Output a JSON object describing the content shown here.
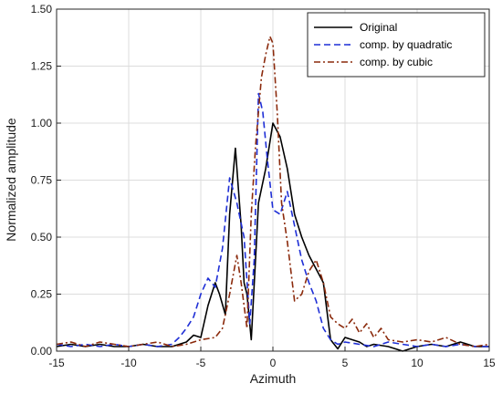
{
  "chart_data": {
    "type": "line",
    "xlabel": "Azimuth",
    "ylabel": "Normalized amplitude",
    "xlim": [
      -15,
      15
    ],
    "ylim": [
      0,
      1.5
    ],
    "xticks": [
      -15,
      -10,
      -5,
      0,
      5,
      10,
      15
    ],
    "yticks": [
      0,
      0.25,
      0.5,
      0.75,
      1.0,
      1.25,
      1.5
    ],
    "xtick_labels": [
      "-15",
      "-10",
      "-5",
      "0",
      "5",
      "10",
      "15"
    ],
    "ytick_labels": [
      "0.00",
      "0.25",
      "0.50",
      "0.75",
      "1.00",
      "1.25",
      "1.50"
    ],
    "grid": true,
    "legend_position": "top-right",
    "series": [
      {
        "name": "Original",
        "color": "#000000",
        "dash": "solid",
        "x": [
          -15,
          -14,
          -13,
          -12,
          -11,
          -10,
          -9,
          -8,
          -7,
          -6.5,
          -6,
          -5.5,
          -5,
          -4.5,
          -4,
          -3.7,
          -3.3,
          -3,
          -2.6,
          -2.2,
          -2,
          -1.8,
          -1.5,
          -1,
          -0.5,
          0,
          0.5,
          1,
          1.5,
          2,
          2.5,
          3,
          3.5,
          4,
          4.5,
          5,
          5.5,
          6,
          6.5,
          7,
          8,
          9,
          10,
          11,
          12,
          13,
          14,
          15
        ],
        "y": [
          0.02,
          0.03,
          0.02,
          0.03,
          0.02,
          0.02,
          0.03,
          0.02,
          0.02,
          0.03,
          0.04,
          0.07,
          0.06,
          0.2,
          0.3,
          0.25,
          0.16,
          0.6,
          0.89,
          0.55,
          0.3,
          0.25,
          0.05,
          0.65,
          0.8,
          1.0,
          0.94,
          0.8,
          0.6,
          0.5,
          0.42,
          0.36,
          0.3,
          0.05,
          0.01,
          0.06,
          0.05,
          0.04,
          0.02,
          0.03,
          0.02,
          0.0,
          0.02,
          0.03,
          0.02,
          0.04,
          0.02,
          0.02
        ]
      },
      {
        "name": "comp. by quadratic",
        "color": "#1f2fd6",
        "dash": "dashed",
        "x": [
          -15,
          -14,
          -13,
          -12,
          -11,
          -10,
          -9,
          -8,
          -7,
          -6.5,
          -6,
          -5.5,
          -5,
          -4.5,
          -4,
          -3.5,
          -3,
          -2.5,
          -2,
          -1.6,
          -1.3,
          -1,
          -0.7,
          -0.4,
          0,
          0.5,
          1,
          1.5,
          2,
          2.5,
          3,
          3.5,
          4,
          4.5,
          5,
          6,
          7,
          8,
          9,
          10,
          11,
          12,
          13,
          14,
          15
        ],
        "y": [
          0.03,
          0.02,
          0.03,
          0.02,
          0.03,
          0.02,
          0.03,
          0.02,
          0.03,
          0.06,
          0.1,
          0.15,
          0.25,
          0.32,
          0.28,
          0.45,
          0.76,
          0.65,
          0.5,
          0.12,
          0.4,
          1.13,
          1.05,
          0.85,
          0.62,
          0.6,
          0.7,
          0.55,
          0.4,
          0.3,
          0.22,
          0.1,
          0.05,
          0.03,
          0.04,
          0.03,
          0.02,
          0.04,
          0.03,
          0.02,
          0.03,
          0.02,
          0.03,
          0.02,
          0.02
        ]
      },
      {
        "name": "comp. by cubic",
        "color": "#8b2a0c",
        "dash": "dashdot",
        "x": [
          -15,
          -14,
          -13,
          -12,
          -11,
          -10,
          -9,
          -8,
          -7,
          -6,
          -5,
          -4,
          -3.5,
          -3,
          -2.5,
          -2.2,
          -1.8,
          -1.5,
          -1.2,
          -0.8,
          -0.5,
          -0.2,
          0,
          0.3,
          0.6,
          1,
          1.5,
          2,
          2.5,
          3,
          3.5,
          4,
          4.5,
          5,
          5.5,
          6,
          6.5,
          7,
          7.5,
          8,
          9,
          10,
          11,
          12,
          13,
          14,
          15
        ],
        "y": [
          0.03,
          0.04,
          0.02,
          0.04,
          0.03,
          0.02,
          0.03,
          0.04,
          0.02,
          0.03,
          0.05,
          0.06,
          0.1,
          0.25,
          0.42,
          0.3,
          0.1,
          0.6,
          0.9,
          1.2,
          1.3,
          1.38,
          1.35,
          1.05,
          0.65,
          0.48,
          0.22,
          0.25,
          0.35,
          0.4,
          0.3,
          0.15,
          0.12,
          0.1,
          0.14,
          0.08,
          0.12,
          0.06,
          0.1,
          0.05,
          0.04,
          0.05,
          0.04,
          0.06,
          0.03,
          0.02,
          0.03
        ]
      }
    ]
  }
}
